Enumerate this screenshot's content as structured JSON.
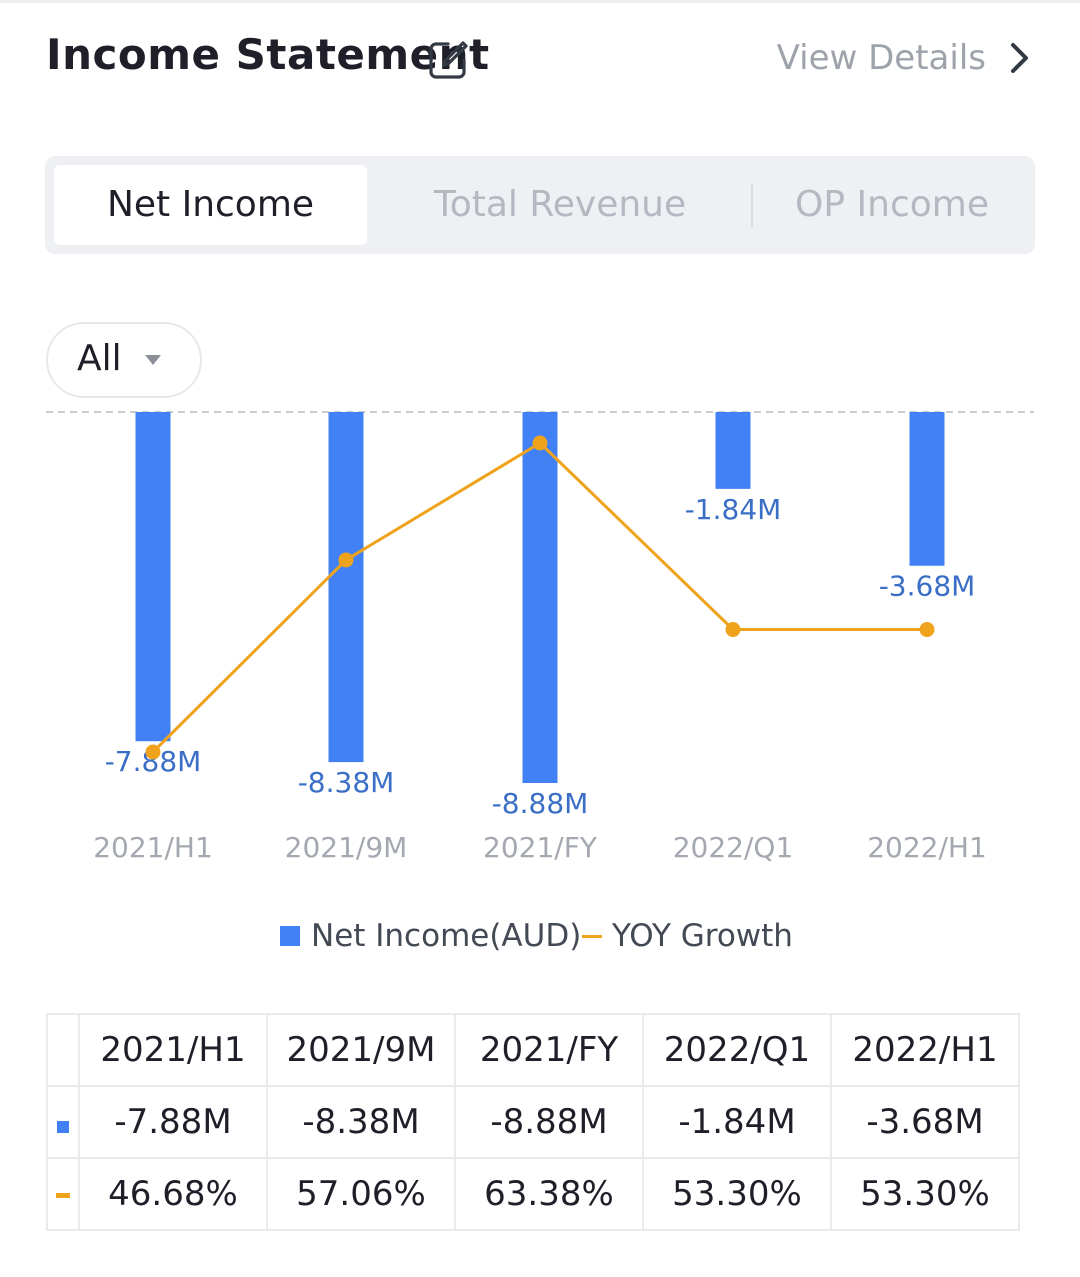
{
  "header": {
    "title": "Income Statement",
    "view_details": "View Details"
  },
  "tabs": [
    {
      "label": "Net Income",
      "active": true
    },
    {
      "label": "Total Revenue",
      "active": false
    },
    {
      "label": "OP Income",
      "active": false
    }
  ],
  "filter": {
    "selected": "All"
  },
  "colors": {
    "bar": "#4281f5",
    "line": "#efa31c",
    "bar_label": "#3b6fc7",
    "positive_pct": "#1aa765"
  },
  "chart_data": {
    "type": "bar",
    "categories": [
      "2021/H1",
      "2021/9M",
      "2021/FY",
      "2022/Q1",
      "2022/H1"
    ],
    "series": [
      {
        "name": "Net Income(AUD)",
        "type": "bar",
        "values": [
          -7.88,
          -8.38,
          -8.88,
          -1.84,
          -3.68
        ],
        "labels": [
          "-7.88M",
          "-8.38M",
          "-8.88M",
          "-1.84M",
          "-3.68M"
        ]
      },
      {
        "name": "YOY Growth",
        "type": "line",
        "values": [
          46.68,
          57.06,
          63.38,
          53.3,
          53.3
        ],
        "labels": [
          "46.68%",
          "57.06%",
          "63.38%",
          "53.30%",
          "53.30%"
        ]
      }
    ],
    "bar_ylim": [
      -8.88,
      0
    ],
    "line_ylim": [
      46.0,
      65.0
    ],
    "zero_line": "dashed",
    "legend_position": "bottom-center"
  },
  "table": {
    "headers": [
      "2021/H1",
      "2021/9M",
      "2021/FY",
      "2022/Q1",
      "2022/H1"
    ],
    "net_income": [
      "-7.88M",
      "-8.38M",
      "-8.88M",
      "-1.84M",
      "-3.68M"
    ],
    "yoy_growth": [
      "46.68%",
      "57.06%",
      "63.38%",
      "53.30%",
      "53.30%"
    ]
  }
}
